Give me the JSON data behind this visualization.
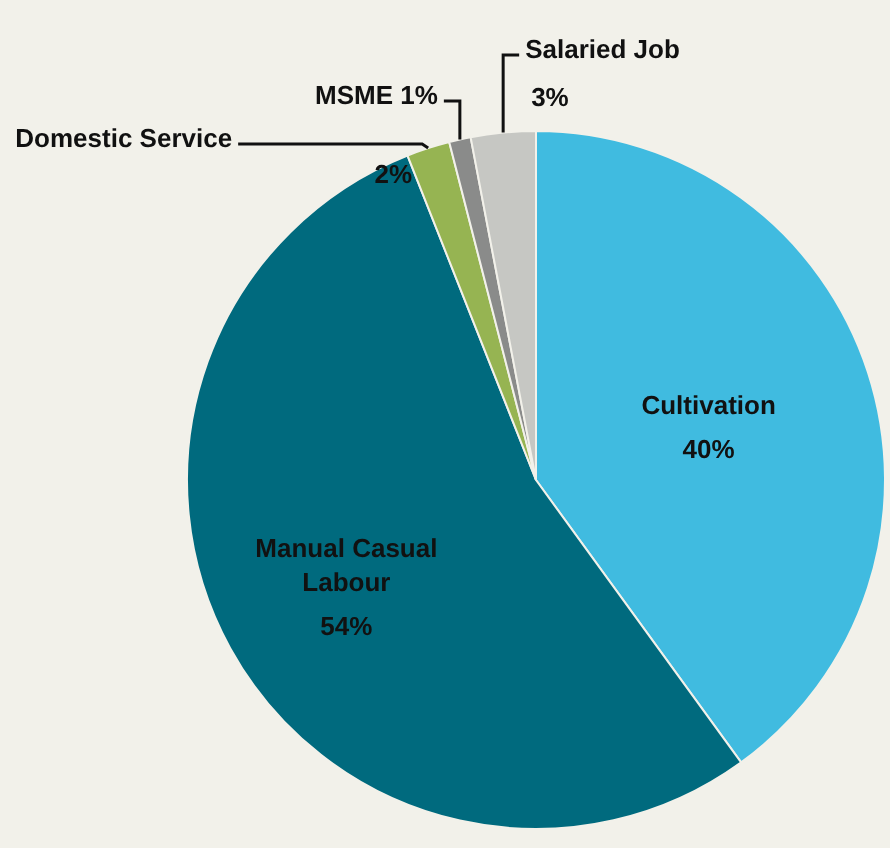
{
  "chart_data": {
    "type": "pie",
    "categories": [
      "Cultivation",
      "Manual Casual Labour",
      "Domestic Service",
      "MSME",
      "Salaried Job"
    ],
    "values": [
      40,
      54,
      2,
      1,
      3
    ],
    "colors": [
      "#40bbe0",
      "#006a7e",
      "#96b452",
      "#8a8b8a",
      "#c6c7c3"
    ],
    "value_labels": [
      "40%",
      "54%",
      "2%",
      "1%",
      "3%"
    ],
    "legend": false
  }
}
